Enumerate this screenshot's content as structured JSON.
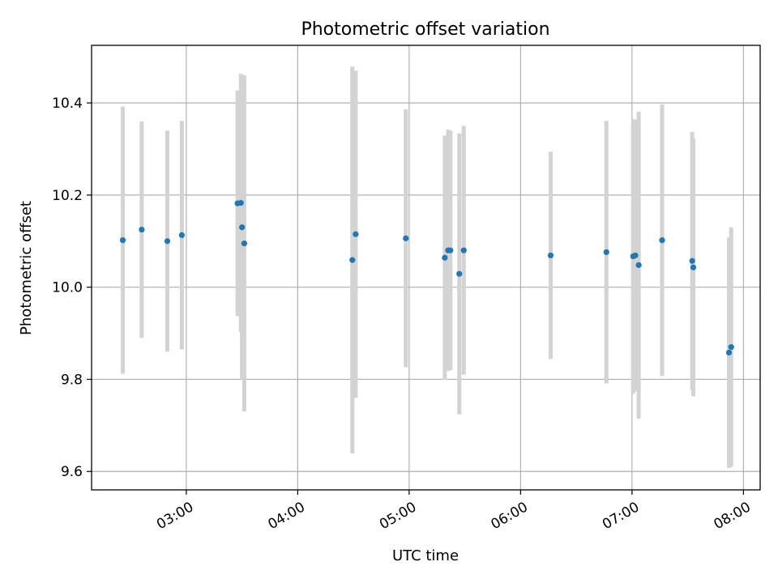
{
  "chart_data": {
    "type": "scatter",
    "title": "Photometric offset variation",
    "xlabel": "UTC time",
    "ylabel": "Photometric offset",
    "x_axis": {
      "unit": "hours UTC",
      "range": [
        2.15,
        8.15
      ],
      "ticks": [
        3,
        4,
        5,
        6,
        7,
        8
      ],
      "tick_labels": [
        "03:00",
        "04:00",
        "05:00",
        "06:00",
        "07:00",
        "08:00"
      ]
    },
    "y_axis": {
      "range": [
        9.56,
        10.525
      ],
      "ticks": [
        9.6,
        9.8,
        10.0,
        10.2,
        10.4
      ],
      "tick_labels": [
        "9.6",
        "9.8",
        "10.0",
        "10.2",
        "10.4"
      ]
    },
    "grid": true,
    "colors": {
      "points": "#1f77b4",
      "errorbars": "#d3d3d3",
      "grid": "#b0b0b0"
    },
    "series": [
      {
        "points": [
          {
            "x": 2.43,
            "y": 10.102,
            "err": 0.29
          },
          {
            "x": 2.6,
            "y": 10.125,
            "err": 0.235
          },
          {
            "x": 2.83,
            "y": 10.1,
            "err": 0.24
          },
          {
            "x": 2.96,
            "y": 10.113,
            "err": 0.248
          },
          {
            "x": 3.46,
            "y": 10.182,
            "err": 0.245
          },
          {
            "x": 3.49,
            "y": 10.183,
            "err": 0.28
          },
          {
            "x": 3.5,
            "y": 10.13,
            "err": 0.33
          },
          {
            "x": 3.52,
            "y": 10.095,
            "err": 0.365
          },
          {
            "x": 4.49,
            "y": 10.059,
            "err": 0.42
          },
          {
            "x": 4.52,
            "y": 10.115,
            "err": 0.355
          },
          {
            "x": 4.97,
            "y": 10.106,
            "err": 0.28
          },
          {
            "x": 5.32,
            "y": 10.064,
            "err": 0.265
          },
          {
            "x": 5.35,
            "y": 10.08,
            "err": 0.262
          },
          {
            "x": 5.37,
            "y": 10.08,
            "err": 0.26
          },
          {
            "x": 5.45,
            "y": 10.029,
            "err": 0.305
          },
          {
            "x": 5.49,
            "y": 10.08,
            "err": 0.27
          },
          {
            "x": 6.27,
            "y": 10.069,
            "err": 0.225
          },
          {
            "x": 6.77,
            "y": 10.076,
            "err": 0.285
          },
          {
            "x": 7.01,
            "y": 10.067,
            "err": 0.298
          },
          {
            "x": 7.03,
            "y": 10.069,
            "err": 0.295
          },
          {
            "x": 7.06,
            "y": 10.048,
            "err": 0.333
          },
          {
            "x": 7.27,
            "y": 10.102,
            "err": 0.295
          },
          {
            "x": 7.54,
            "y": 10.057,
            "err": 0.28
          },
          {
            "x": 7.55,
            "y": 10.043,
            "err": 0.28
          },
          {
            "x": 7.87,
            "y": 9.858,
            "err": 0.25
          },
          {
            "x": 7.89,
            "y": 9.87,
            "err": 0.26
          }
        ]
      }
    ]
  }
}
